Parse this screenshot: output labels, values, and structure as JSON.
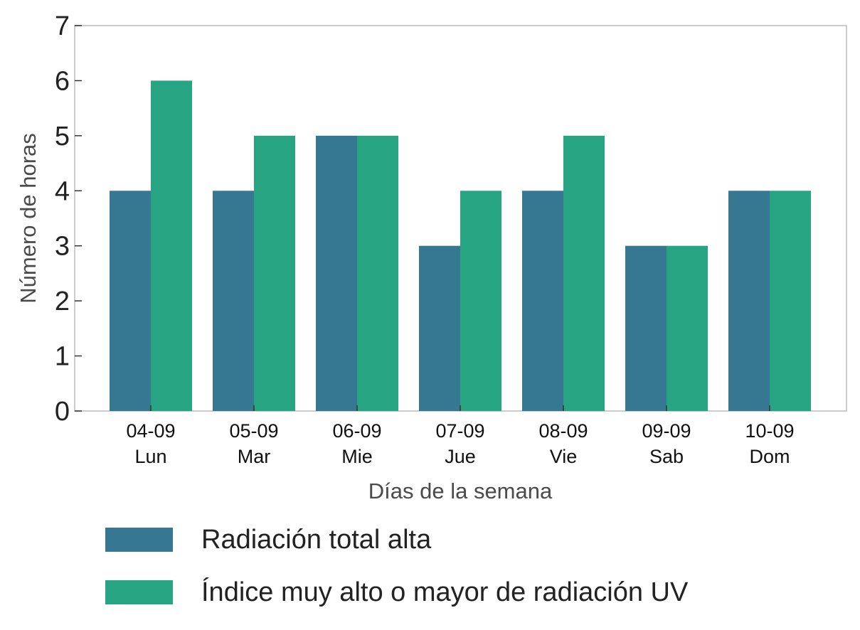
{
  "chart_data": {
    "type": "bar",
    "categories": [
      [
        "04-09",
        "Lun"
      ],
      [
        "05-09",
        "Mar"
      ],
      [
        "06-09",
        "Mie"
      ],
      [
        "07-09",
        "Jue"
      ],
      [
        "08-09",
        "Vie"
      ],
      [
        "09-09",
        "Sab"
      ],
      [
        "10-09",
        "Dom"
      ]
    ],
    "series": [
      {
        "name": "Radiación total alta",
        "color": "#367892",
        "values": [
          4,
          4,
          5,
          3,
          4,
          3,
          4
        ]
      },
      {
        "name": "Índice muy alto o mayor de radiación UV",
        "color": "#27a583",
        "values": [
          6,
          5,
          5,
          4,
          5,
          3,
          4
        ]
      }
    ],
    "xlabel": "Días de la semana",
    "ylabel": "Número de horas",
    "ylim": [
      0,
      7
    ],
    "yticks": [
      0,
      1,
      2,
      3,
      4,
      5,
      6,
      7
    ],
    "grid": false,
    "legend_position": "bottom"
  }
}
